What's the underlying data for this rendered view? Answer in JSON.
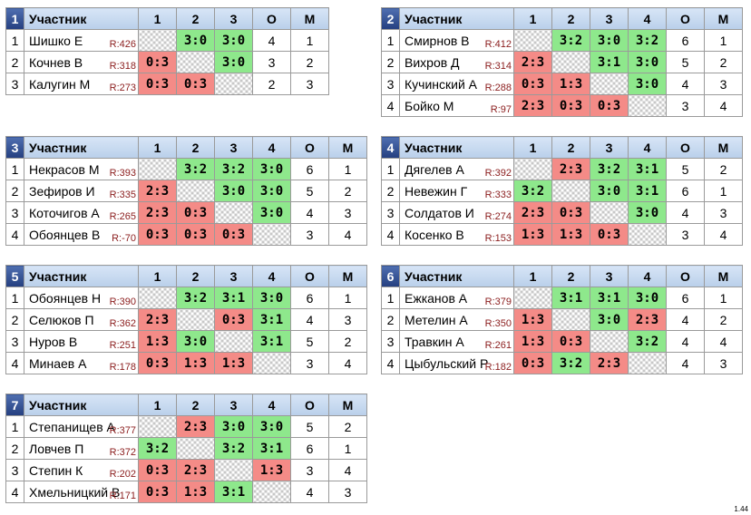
{
  "header": {
    "participant": "Участник",
    "points": "О",
    "place": "М"
  },
  "groups": [
    {
      "num": "1",
      "cols": [
        "1",
        "2",
        "3"
      ],
      "rows": [
        {
          "idx": "1",
          "name": "Шишко Е",
          "rating": "R:426",
          "cells": [
            {
              "t": "x",
              "v": ""
            },
            {
              "t": "w",
              "v": "3:0"
            },
            {
              "t": "w",
              "v": "3:0"
            }
          ],
          "points": "4",
          "place": "1"
        },
        {
          "idx": "2",
          "name": "Кочнев В",
          "rating": "R:318",
          "cells": [
            {
              "t": "l",
              "v": "0:3"
            },
            {
              "t": "x",
              "v": ""
            },
            {
              "t": "w",
              "v": "3:0"
            }
          ],
          "points": "3",
          "place": "2"
        },
        {
          "idx": "3",
          "name": "Калугин М",
          "rating": "R:273",
          "cells": [
            {
              "t": "l",
              "v": "0:3"
            },
            {
              "t": "l",
              "v": "0:3"
            },
            {
              "t": "x",
              "v": ""
            }
          ],
          "points": "2",
          "place": "3"
        }
      ]
    },
    {
      "num": "2",
      "cols": [
        "1",
        "2",
        "3",
        "4"
      ],
      "rows": [
        {
          "idx": "1",
          "name": "Смирнов В",
          "rating": "R:412",
          "cells": [
            {
              "t": "x",
              "v": ""
            },
            {
              "t": "w",
              "v": "3:2"
            },
            {
              "t": "w",
              "v": "3:0"
            },
            {
              "t": "w",
              "v": "3:2"
            }
          ],
          "points": "6",
          "place": "1"
        },
        {
          "idx": "2",
          "name": "Вихров Д",
          "rating": "R:314",
          "cells": [
            {
              "t": "l",
              "v": "2:3"
            },
            {
              "t": "x",
              "v": ""
            },
            {
              "t": "w",
              "v": "3:1"
            },
            {
              "t": "w",
              "v": "3:0"
            }
          ],
          "points": "5",
          "place": "2"
        },
        {
          "idx": "3",
          "name": "Кучинский А",
          "rating": "R:288",
          "cells": [
            {
              "t": "l",
              "v": "0:3"
            },
            {
              "t": "l",
              "v": "1:3"
            },
            {
              "t": "x",
              "v": ""
            },
            {
              "t": "w",
              "v": "3:0"
            }
          ],
          "points": "4",
          "place": "3"
        },
        {
          "idx": "4",
          "name": "Бойко М",
          "rating": "R:97",
          "cells": [
            {
              "t": "l",
              "v": "2:3"
            },
            {
              "t": "l",
              "v": "0:3"
            },
            {
              "t": "l",
              "v": "0:3"
            },
            {
              "t": "x",
              "v": ""
            }
          ],
          "points": "3",
          "place": "4"
        }
      ]
    },
    {
      "num": "3",
      "cols": [
        "1",
        "2",
        "3",
        "4"
      ],
      "rows": [
        {
          "idx": "1",
          "name": "Некрасов М",
          "rating": "R:393",
          "cells": [
            {
              "t": "x",
              "v": ""
            },
            {
              "t": "w",
              "v": "3:2"
            },
            {
              "t": "w",
              "v": "3:2"
            },
            {
              "t": "w",
              "v": "3:0"
            }
          ],
          "points": "6",
          "place": "1"
        },
        {
          "idx": "2",
          "name": "Зефиров И",
          "rating": "R:335",
          "cells": [
            {
              "t": "l",
              "v": "2:3"
            },
            {
              "t": "x",
              "v": ""
            },
            {
              "t": "w",
              "v": "3:0"
            },
            {
              "t": "w",
              "v": "3:0"
            }
          ],
          "points": "5",
          "place": "2"
        },
        {
          "idx": "3",
          "name": "Коточигов А",
          "rating": "R:265",
          "cells": [
            {
              "t": "l",
              "v": "2:3"
            },
            {
              "t": "l",
              "v": "0:3"
            },
            {
              "t": "x",
              "v": ""
            },
            {
              "t": "w",
              "v": "3:0"
            }
          ],
          "points": "4",
          "place": "3"
        },
        {
          "idx": "4",
          "name": "Обоянцев В",
          "rating": "R:-70",
          "cells": [
            {
              "t": "l",
              "v": "0:3"
            },
            {
              "t": "l",
              "v": "0:3"
            },
            {
              "t": "l",
              "v": "0:3"
            },
            {
              "t": "x",
              "v": ""
            }
          ],
          "points": "3",
          "place": "4"
        }
      ]
    },
    {
      "num": "4",
      "cols": [
        "1",
        "2",
        "3",
        "4"
      ],
      "rows": [
        {
          "idx": "1",
          "name": "Дягелев А",
          "rating": "R:392",
          "cells": [
            {
              "t": "x",
              "v": ""
            },
            {
              "t": "l",
              "v": "2:3"
            },
            {
              "t": "w",
              "v": "3:2"
            },
            {
              "t": "w",
              "v": "3:1"
            }
          ],
          "points": "5",
          "place": "2"
        },
        {
          "idx": "2",
          "name": "Невежин Г",
          "rating": "R:333",
          "cells": [
            {
              "t": "w",
              "v": "3:2"
            },
            {
              "t": "x",
              "v": ""
            },
            {
              "t": "w",
              "v": "3:0"
            },
            {
              "t": "w",
              "v": "3:1"
            }
          ],
          "points": "6",
          "place": "1"
        },
        {
          "idx": "3",
          "name": "Солдатов И",
          "rating": "R:274",
          "cells": [
            {
              "t": "l",
              "v": "2:3"
            },
            {
              "t": "l",
              "v": "0:3"
            },
            {
              "t": "x",
              "v": ""
            },
            {
              "t": "w",
              "v": "3:0"
            }
          ],
          "points": "4",
          "place": "3"
        },
        {
          "idx": "4",
          "name": "Косенко В",
          "rating": "R:153",
          "cells": [
            {
              "t": "l",
              "v": "1:3"
            },
            {
              "t": "l",
              "v": "1:3"
            },
            {
              "t": "l",
              "v": "0:3"
            },
            {
              "t": "x",
              "v": ""
            }
          ],
          "points": "3",
          "place": "4"
        }
      ]
    },
    {
      "num": "5",
      "cols": [
        "1",
        "2",
        "3",
        "4"
      ],
      "rows": [
        {
          "idx": "1",
          "name": "Обоянцев Н",
          "rating": "R:390",
          "cells": [
            {
              "t": "x",
              "v": ""
            },
            {
              "t": "w",
              "v": "3:2"
            },
            {
              "t": "w",
              "v": "3:1"
            },
            {
              "t": "w",
              "v": "3:0"
            }
          ],
          "points": "6",
          "place": "1"
        },
        {
          "idx": "2",
          "name": "Селюков П",
          "rating": "R:362",
          "cells": [
            {
              "t": "l",
              "v": "2:3"
            },
            {
              "t": "x",
              "v": ""
            },
            {
              "t": "l",
              "v": "0:3"
            },
            {
              "t": "w",
              "v": "3:1"
            }
          ],
          "points": "4",
          "place": "3"
        },
        {
          "idx": "3",
          "name": "Нуров В",
          "rating": "R:251",
          "cells": [
            {
              "t": "l",
              "v": "1:3"
            },
            {
              "t": "w",
              "v": "3:0"
            },
            {
              "t": "x",
              "v": ""
            },
            {
              "t": "w",
              "v": "3:1"
            }
          ],
          "points": "5",
          "place": "2"
        },
        {
          "idx": "4",
          "name": "Минаев А",
          "rating": "R:178",
          "cells": [
            {
              "t": "l",
              "v": "0:3"
            },
            {
              "t": "l",
              "v": "1:3"
            },
            {
              "t": "l",
              "v": "1:3"
            },
            {
              "t": "x",
              "v": ""
            }
          ],
          "points": "3",
          "place": "4"
        }
      ]
    },
    {
      "num": "6",
      "cols": [
        "1",
        "2",
        "3",
        "4"
      ],
      "rows": [
        {
          "idx": "1",
          "name": "Ежканов А",
          "rating": "R:379",
          "cells": [
            {
              "t": "x",
              "v": ""
            },
            {
              "t": "w",
              "v": "3:1"
            },
            {
              "t": "w",
              "v": "3:1"
            },
            {
              "t": "w",
              "v": "3:0"
            }
          ],
          "points": "6",
          "place": "1"
        },
        {
          "idx": "2",
          "name": "Метелин А",
          "rating": "R:350",
          "cells": [
            {
              "t": "l",
              "v": "1:3"
            },
            {
              "t": "x",
              "v": ""
            },
            {
              "t": "w",
              "v": "3:0"
            },
            {
              "t": "l",
              "v": "2:3"
            }
          ],
          "points": "4",
          "place": "2"
        },
        {
          "idx": "3",
          "name": "Травкин А",
          "rating": "R:261",
          "cells": [
            {
              "t": "l",
              "v": "1:3"
            },
            {
              "t": "l",
              "v": "0:3"
            },
            {
              "t": "x",
              "v": ""
            },
            {
              "t": "w",
              "v": "3:2"
            }
          ],
          "points": "4",
          "place": "4"
        },
        {
          "idx": "4",
          "name": "Цыбульский Р",
          "rating": "R:182",
          "cells": [
            {
              "t": "l",
              "v": "0:3"
            },
            {
              "t": "w",
              "v": "3:2"
            },
            {
              "t": "l",
              "v": "2:3"
            },
            {
              "t": "x",
              "v": ""
            }
          ],
          "points": "4",
          "place": "3"
        }
      ]
    },
    {
      "num": "7",
      "cols": [
        "1",
        "2",
        "3",
        "4"
      ],
      "rows": [
        {
          "idx": "1",
          "name": "Степанищев А",
          "rating": "R:377",
          "cells": [
            {
              "t": "x",
              "v": ""
            },
            {
              "t": "l",
              "v": "2:3"
            },
            {
              "t": "w",
              "v": "3:0"
            },
            {
              "t": "w",
              "v": "3:0"
            }
          ],
          "points": "5",
          "place": "2"
        },
        {
          "idx": "2",
          "name": "Ловчев П",
          "rating": "R:372",
          "cells": [
            {
              "t": "w",
              "v": "3:2"
            },
            {
              "t": "x",
              "v": ""
            },
            {
              "t": "w",
              "v": "3:2"
            },
            {
              "t": "w",
              "v": "3:1"
            }
          ],
          "points": "6",
          "place": "1"
        },
        {
          "idx": "3",
          "name": "Степин К",
          "rating": "R:202",
          "cells": [
            {
              "t": "l",
              "v": "0:3"
            },
            {
              "t": "l",
              "v": "2:3"
            },
            {
              "t": "x",
              "v": ""
            },
            {
              "t": "l",
              "v": "1:3"
            }
          ],
          "points": "3",
          "place": "4"
        },
        {
          "idx": "4",
          "name": "Хмельницкий В",
          "rating": "R:171",
          "cells": [
            {
              "t": "l",
              "v": "0:3"
            },
            {
              "t": "l",
              "v": "1:3"
            },
            {
              "t": "w",
              "v": "3:1"
            },
            {
              "t": "x",
              "v": ""
            }
          ],
          "points": "4",
          "place": "3"
        }
      ]
    }
  ],
  "version": "1.44",
  "colors": {
    "win": "#8ee88c",
    "loss": "#f48b87",
    "header": "#c8daf0",
    "header_num": "#2d4a8c"
  }
}
